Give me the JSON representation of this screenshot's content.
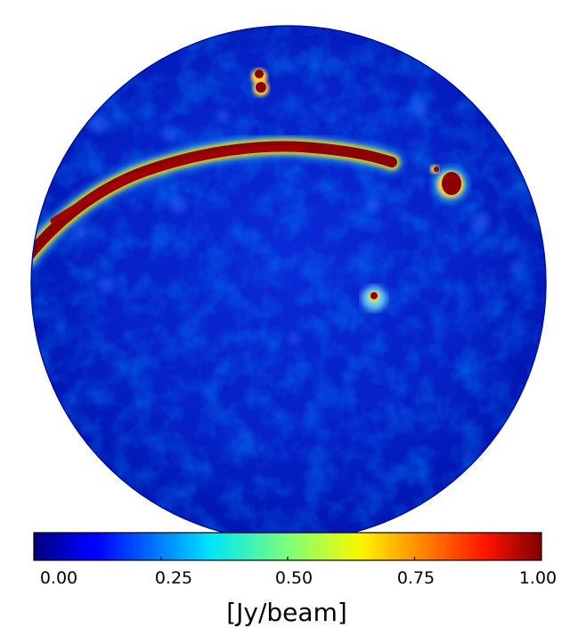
{
  "colorbar": {
    "colormap": "jet",
    "range": [
      0,
      1
    ],
    "ticks": [
      "0.00",
      "0.25",
      "0.50",
      "0.75",
      "1.00"
    ],
    "unit_label": "[Jy/beam]"
  },
  "sky_map": {
    "projection": "orthographic",
    "background_color": "#0018c8",
    "features": [
      "galactic-plane-band",
      "bright-source-top",
      "bright-source-right",
      "point-source-center"
    ]
  }
}
